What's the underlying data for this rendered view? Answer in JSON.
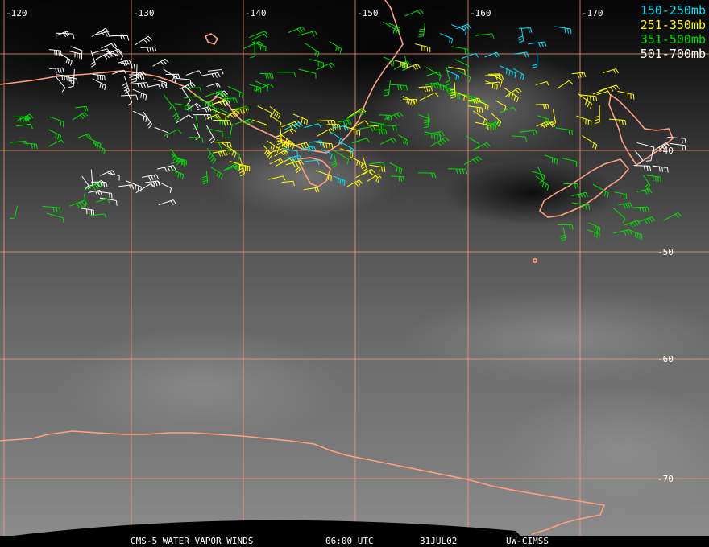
{
  "lon_labels": [
    {
      "text": "-120",
      "lon": -120
    },
    {
      "text": "-130",
      "lon": -130
    },
    {
      "text": "-140",
      "lon": -140
    },
    {
      "text": "-150",
      "lon": -150
    },
    {
      "text": "-160",
      "lon": -160
    },
    {
      "text": "-170",
      "lon": -170
    }
  ],
  "lat_labels": [
    {
      "text": "-40",
      "lat": -40
    },
    {
      "text": "-50",
      "lat": -50
    },
    {
      "text": "-60",
      "lat": -60
    },
    {
      "text": "-70",
      "lat": -70
    }
  ],
  "legend": [
    {
      "label": "150-250mb",
      "color": "#00e5ff"
    },
    {
      "label": "251-350mb",
      "color": "#ffff00"
    },
    {
      "label": "351-500mb",
      "color": "#00e000"
    },
    {
      "label": "501-700mb",
      "color": "#ffffff"
    }
  ],
  "footer": {
    "product": "GMS-5 WATER VAPOR WINDS",
    "time": "06:00 UTC",
    "date": "31JUL02",
    "source": "UW-CIMSS"
  },
  "colors": {
    "grid": "#ff9f7f",
    "coast": "#ffa080"
  }
}
